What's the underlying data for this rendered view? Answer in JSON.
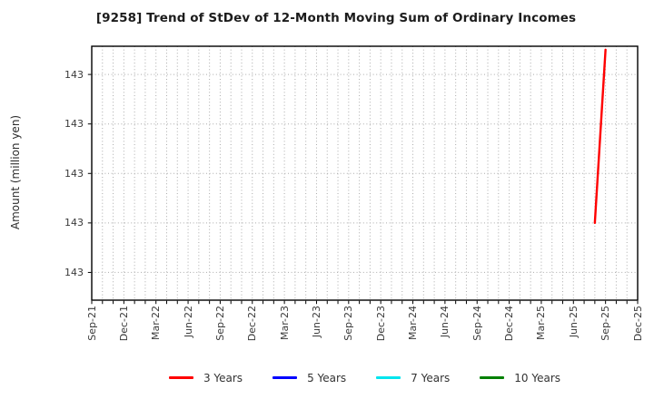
{
  "chart_data": {
    "type": "line",
    "title": "[9258]  Trend of StDev of 12-Month Moving Sum of Ordinary Incomes",
    "ylabel": "Amount (million yen)",
    "xlabel": "",
    "x_tick_labels": [
      "Sep-21",
      "Dec-21",
      "Mar-22",
      "Jun-22",
      "Sep-22",
      "Dec-22",
      "Mar-23",
      "Jun-23",
      "Sep-23",
      "Dec-23",
      "Mar-24",
      "Jun-24",
      "Sep-24",
      "Dec-24",
      "Mar-25",
      "Jun-25",
      "Sep-25",
      "Dec-25"
    ],
    "x_total_months": 51,
    "months_per_label": 3,
    "y_tick_display": [
      "143",
      "143",
      "143",
      "143",
      "143"
    ],
    "y_tick_values": [
      142.8,
      142.9,
      143.0,
      143.1,
      143.2
    ],
    "ylim": [
      142.744,
      143.257
    ],
    "grid": {
      "style": "dotted",
      "color": "#ababab",
      "vertical": "monthly",
      "horizontal": "at-y-ticks"
    },
    "legend_position": "bottom-center",
    "series": [
      {
        "name": "3 Years",
        "color": "#ff0000",
        "points": [
          {
            "x_label": "Aug-25",
            "month_index": 47,
            "value": 142.9
          },
          {
            "x_label": "Sep-25",
            "month_index": 48,
            "value": 143.25
          }
        ]
      },
      {
        "name": "5 Years",
        "color": "#0000ff",
        "points": []
      },
      {
        "name": "7 Years",
        "color": "#00e5ee",
        "points": []
      },
      {
        "name": "10 Years",
        "color": "#008000",
        "points": []
      }
    ]
  }
}
